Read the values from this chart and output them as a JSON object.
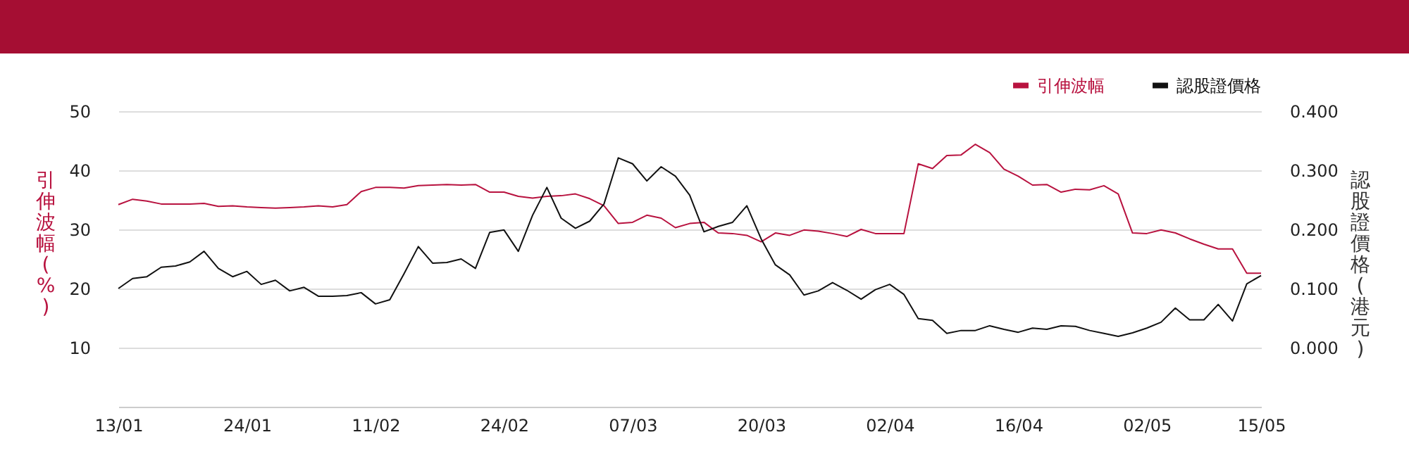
{
  "chart_data": {
    "type": "line",
    "categories": [
      "13/01",
      null,
      null,
      null,
      null,
      null,
      null,
      null,
      null,
      "24/01",
      null,
      null,
      null,
      null,
      null,
      null,
      null,
      null,
      "11/02",
      null,
      null,
      null,
      null,
      null,
      null,
      null,
      null,
      "24/02",
      null,
      null,
      null,
      null,
      null,
      null,
      null,
      null,
      "07/03",
      null,
      null,
      null,
      null,
      null,
      null,
      null,
      null,
      "20/03",
      null,
      null,
      null,
      null,
      null,
      null,
      null,
      null,
      "02/04",
      null,
      null,
      null,
      null,
      null,
      null,
      null,
      null,
      "16/04",
      null,
      null,
      null,
      null,
      null,
      null,
      null,
      null,
      "02/05",
      null,
      null,
      null,
      null,
      null,
      null,
      null,
      "15/05"
    ],
    "ylabel": "引伸波幅(%)",
    "y2label": "認股證價格(港元)",
    "ylim": [
      0,
      50
    ],
    "yticks": [
      10,
      20,
      30,
      40,
      50
    ],
    "y2lim": [
      -0.1,
      0.4
    ],
    "y2ticks": [
      {
        "value": 0,
        "label": "0.000"
      },
      {
        "value": 0.1,
        "label": "0.100"
      },
      {
        "value": 0.2,
        "label": "0.200"
      },
      {
        "value": 0.3,
        "label": "0.300"
      },
      {
        "value": 0.4,
        "label": "0.400"
      }
    ],
    "grid": "y",
    "legend": "top right",
    "series": [
      {
        "name": "引伸波幅",
        "color": "#b8123f",
        "values": [
          34.2,
          35.1,
          34.8,
          34.3,
          34.3,
          34.3,
          34.4,
          33.9,
          34.0,
          33.8,
          33.7,
          33.6,
          33.7,
          33.8,
          34.0,
          33.8,
          34.2,
          36.4,
          37.1,
          37.1,
          37.0,
          37.4,
          37.5,
          37.6,
          37.5,
          37.6,
          36.3,
          36.3,
          35.6,
          35.3,
          35.6,
          35.7,
          36.0,
          35.2,
          34.0,
          31.0,
          31.2,
          32.4,
          31.9,
          30.3,
          31.0,
          31.2,
          29.4,
          29.3,
          29.0,
          27.9,
          29.4,
          29.0,
          29.9,
          29.7,
          29.3,
          28.8,
          30.0,
          29.3,
          29.3,
          29.3,
          41.1,
          40.3,
          42.5,
          42.6,
          44.4,
          43.0,
          40.2,
          39.0,
          37.5,
          37.6,
          36.3,
          36.8,
          36.7,
          37.4,
          36.0,
          29.4,
          29.3,
          29.9,
          29.4,
          28.4,
          27.5,
          26.7,
          26.7,
          22.6,
          22.6
        ]
      },
      {
        "name": "認股證價格",
        "color": "#111111",
        "axis": "y2",
        "values": [
          0.1,
          0.117,
          0.12,
          0.136,
          0.138,
          0.145,
          0.163,
          0.134,
          0.12,
          0.129,
          0.107,
          0.114,
          0.096,
          0.102,
          0.087,
          0.087,
          0.088,
          0.093,
          0.074,
          0.081,
          0.125,
          0.171,
          0.143,
          0.144,
          0.15,
          0.134,
          0.195,
          0.199,
          0.163,
          0.224,
          0.271,
          0.219,
          0.202,
          0.214,
          0.243,
          0.321,
          0.311,
          0.282,
          0.306,
          0.29,
          0.258,
          0.196,
          0.205,
          0.212,
          0.24,
          0.184,
          0.14,
          0.123,
          0.089,
          0.096,
          0.11,
          0.097,
          0.082,
          0.098,
          0.107,
          0.09,
          0.049,
          0.046,
          0.024,
          0.029,
          0.029,
          0.037,
          0.031,
          0.026,
          0.033,
          0.031,
          0.037,
          0.036,
          0.029,
          0.024,
          0.019,
          0.025,
          0.033,
          0.043,
          0.067,
          0.047,
          0.047,
          0.073,
          0.045,
          0.108,
          0.122
        ]
      }
    ]
  }
}
